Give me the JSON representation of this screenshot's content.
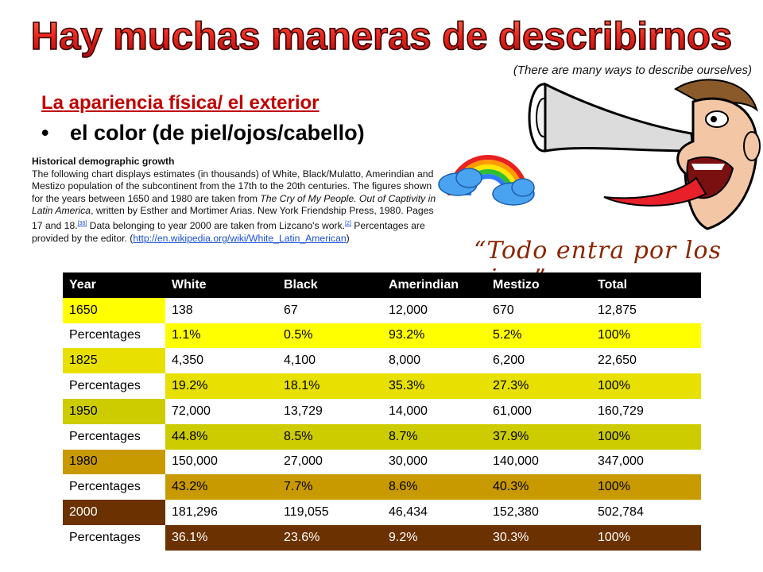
{
  "title": "Hay muchas maneras de describirnos",
  "subtitle": "(There are many ways to describe ourselves)",
  "heading": "La apariencia física/ el exterior",
  "bullet": "el color (de piel/ojos/cabello)",
  "paragraph": {
    "heading": "Historical demographic growth",
    "text_1": "The following chart displays estimates (in thousands) of White, Black/Mulatto, Amerindian and Mestizo population of the subcontinent from the 17th to the 20th centuries. The figures shown for the years between 1650 and 1980 are taken from ",
    "book": "The Cry of My People. Out of Captivity in Latin America",
    "text_2": ", written by Esther and Mortimer Arias. New York Friendship Press, 1980. Pages 17 and 18.",
    "ref_1": "[38]",
    "text_3": " Data belonging to year 2000 are taken from Lizcano's work.",
    "ref_2": "[2]",
    "text_4": " Percentages are provided by the editor.  (",
    "link": "http://en.wikipedia.org/wiki/White_Latin_American",
    "text_5": ")"
  },
  "quote": "“Todo entra por los ojos.”",
  "colors": {
    "title_red": "#e8251c",
    "heading_red": "#c00000",
    "row_1650": "#ffff00",
    "row_1825": "#e7e000",
    "row_1950": "#cccc00",
    "row_1980": "#c99a00",
    "row_2000": "#6b3100"
  },
  "table": {
    "headers": [
      "Year",
      "White",
      "Black",
      "Amerindian",
      "Mestizo",
      "Total"
    ],
    "rows": [
      [
        "1650",
        "138",
        "67",
        "12,000",
        "670",
        "12,875"
      ],
      [
        "Percentages",
        "1.1%",
        "0.5%",
        "93.2%",
        "5.2%",
        "100%"
      ],
      [
        "1825",
        "4,350",
        "4,100",
        "8,000",
        "6,200",
        "22,650"
      ],
      [
        "Percentages",
        "19.2%",
        "18.1%",
        "35.3%",
        "27.3%",
        "100%"
      ],
      [
        "1950",
        "72,000",
        "13,729",
        "14,000",
        "61,000",
        "160,729"
      ],
      [
        "Percentages",
        "44.8%",
        "8.5%",
        "8.7%",
        "37.9%",
        "100%"
      ],
      [
        "1980",
        "150,000",
        "27,000",
        "30,000",
        "140,000",
        "347,000"
      ],
      [
        "Percentages",
        "43.2%",
        "7.7%",
        "8.6%",
        "40.3%",
        "100%"
      ],
      [
        "2000",
        "181,296",
        "119,055",
        "46,434",
        "152,380",
        "502,784"
      ],
      [
        "Percentages",
        "36.1%",
        "23.6%",
        "9.2%",
        "30.3%",
        "100%"
      ]
    ]
  },
  "icons": [
    "rainbow-cloud-icon",
    "cartoon-face-horn-icon"
  ]
}
